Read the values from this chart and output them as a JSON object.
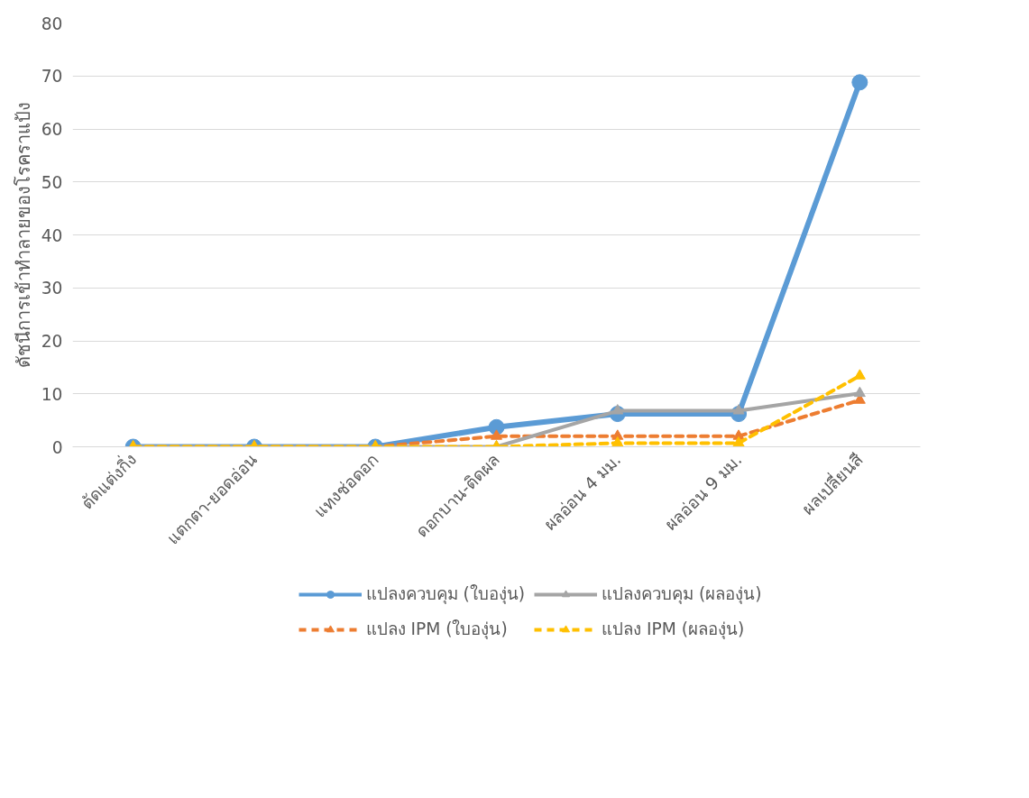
{
  "chart_data": {
    "type": "line",
    "ylabel": "ดัชนีการเข้าทำลายของโรคราแป้ง",
    "categories": [
      "ตัดแต่งกิ่ง",
      "แตกตา-ยอดอ่อน",
      "แทงช่อดอก",
      "ดอกบาน-ติดผล",
      "ผลอ่อน 4 มม.",
      "ผลอ่อน 9 มม.",
      "ผลเปลี่ยนสี"
    ],
    "series": [
      {
        "name": "แปลงควบคุม (ใบองุ่น)",
        "color": "#5b9bd5",
        "marker": "circle",
        "line_style": "solid",
        "values": [
          0,
          0,
          0,
          3.7,
          6.2,
          6.2,
          68.8
        ]
      },
      {
        "name": "แปลง IPM (ใบองุ่น)",
        "color": "#ed7d31",
        "marker": "triangle",
        "line_style": "dashed",
        "values": [
          0,
          0,
          0,
          2,
          2,
          2,
          8.8
        ]
      },
      {
        "name": "แปลงควบคุม (ผลองุ่น)",
        "color": "#a5a5a5",
        "marker": "triangle",
        "line_style": "solid",
        "values": [
          0,
          0,
          0,
          0,
          6.8,
          6.8,
          10.1
        ]
      },
      {
        "name": "แปลง IPM (ผลองุ่น)",
        "color": "#ffc000",
        "marker": "triangle",
        "line_style": "dashed",
        "values": [
          0,
          0,
          0,
          0,
          0.7,
          0.7,
          13.4
        ]
      }
    ],
    "ylim": [
      0,
      80
    ],
    "yticks": [
      0,
      10,
      20,
      30,
      40,
      50,
      60,
      70,
      80
    ],
    "grid": "y",
    "legend": "bottom"
  }
}
